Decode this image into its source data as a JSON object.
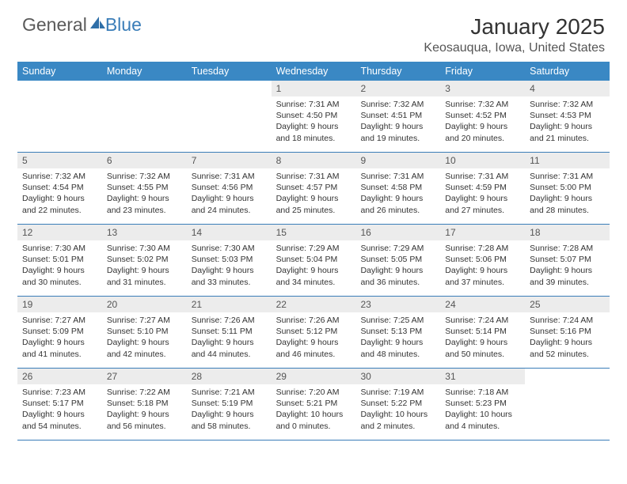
{
  "logo": {
    "text1": "General",
    "text2": "Blue"
  },
  "header": {
    "month": "January 2025",
    "location": "Keosauqua, Iowa, United States"
  },
  "colors": {
    "headerRowBg": "#3a88c4",
    "headerRowText": "#ffffff",
    "dayNumBg": "#ececec",
    "weekBorder": "#3a7db8",
    "logoGray": "#5a5a5a",
    "logoBlue": "#3a7db8"
  },
  "dow": [
    "Sunday",
    "Monday",
    "Tuesday",
    "Wednesday",
    "Thursday",
    "Friday",
    "Saturday"
  ],
  "weeks": [
    [
      {
        "empty": true
      },
      {
        "empty": true
      },
      {
        "empty": true
      },
      {
        "num": "1",
        "sunrise": "7:31 AM",
        "sunset": "4:50 PM",
        "dlh": "9",
        "dlm": "18"
      },
      {
        "num": "2",
        "sunrise": "7:32 AM",
        "sunset": "4:51 PM",
        "dlh": "9",
        "dlm": "19"
      },
      {
        "num": "3",
        "sunrise": "7:32 AM",
        "sunset": "4:52 PM",
        "dlh": "9",
        "dlm": "20"
      },
      {
        "num": "4",
        "sunrise": "7:32 AM",
        "sunset": "4:53 PM",
        "dlh": "9",
        "dlm": "21"
      }
    ],
    [
      {
        "num": "5",
        "sunrise": "7:32 AM",
        "sunset": "4:54 PM",
        "dlh": "9",
        "dlm": "22"
      },
      {
        "num": "6",
        "sunrise": "7:32 AM",
        "sunset": "4:55 PM",
        "dlh": "9",
        "dlm": "23"
      },
      {
        "num": "7",
        "sunrise": "7:31 AM",
        "sunset": "4:56 PM",
        "dlh": "9",
        "dlm": "24"
      },
      {
        "num": "8",
        "sunrise": "7:31 AM",
        "sunset": "4:57 PM",
        "dlh": "9",
        "dlm": "25"
      },
      {
        "num": "9",
        "sunrise": "7:31 AM",
        "sunset": "4:58 PM",
        "dlh": "9",
        "dlm": "26"
      },
      {
        "num": "10",
        "sunrise": "7:31 AM",
        "sunset": "4:59 PM",
        "dlh": "9",
        "dlm": "27"
      },
      {
        "num": "11",
        "sunrise": "7:31 AM",
        "sunset": "5:00 PM",
        "dlh": "9",
        "dlm": "28"
      }
    ],
    [
      {
        "num": "12",
        "sunrise": "7:30 AM",
        "sunset": "5:01 PM",
        "dlh": "9",
        "dlm": "30"
      },
      {
        "num": "13",
        "sunrise": "7:30 AM",
        "sunset": "5:02 PM",
        "dlh": "9",
        "dlm": "31"
      },
      {
        "num": "14",
        "sunrise": "7:30 AM",
        "sunset": "5:03 PM",
        "dlh": "9",
        "dlm": "33"
      },
      {
        "num": "15",
        "sunrise": "7:29 AM",
        "sunset": "5:04 PM",
        "dlh": "9",
        "dlm": "34"
      },
      {
        "num": "16",
        "sunrise": "7:29 AM",
        "sunset": "5:05 PM",
        "dlh": "9",
        "dlm": "36"
      },
      {
        "num": "17",
        "sunrise": "7:28 AM",
        "sunset": "5:06 PM",
        "dlh": "9",
        "dlm": "37"
      },
      {
        "num": "18",
        "sunrise": "7:28 AM",
        "sunset": "5:07 PM",
        "dlh": "9",
        "dlm": "39"
      }
    ],
    [
      {
        "num": "19",
        "sunrise": "7:27 AM",
        "sunset": "5:09 PM",
        "dlh": "9",
        "dlm": "41"
      },
      {
        "num": "20",
        "sunrise": "7:27 AM",
        "sunset": "5:10 PM",
        "dlh": "9",
        "dlm": "42"
      },
      {
        "num": "21",
        "sunrise": "7:26 AM",
        "sunset": "5:11 PM",
        "dlh": "9",
        "dlm": "44"
      },
      {
        "num": "22",
        "sunrise": "7:26 AM",
        "sunset": "5:12 PM",
        "dlh": "9",
        "dlm": "46"
      },
      {
        "num": "23",
        "sunrise": "7:25 AM",
        "sunset": "5:13 PM",
        "dlh": "9",
        "dlm": "48"
      },
      {
        "num": "24",
        "sunrise": "7:24 AM",
        "sunset": "5:14 PM",
        "dlh": "9",
        "dlm": "50"
      },
      {
        "num": "25",
        "sunrise": "7:24 AM",
        "sunset": "5:16 PM",
        "dlh": "9",
        "dlm": "52"
      }
    ],
    [
      {
        "num": "26",
        "sunrise": "7:23 AM",
        "sunset": "5:17 PM",
        "dlh": "9",
        "dlm": "54"
      },
      {
        "num": "27",
        "sunrise": "7:22 AM",
        "sunset": "5:18 PM",
        "dlh": "9",
        "dlm": "56"
      },
      {
        "num": "28",
        "sunrise": "7:21 AM",
        "sunset": "5:19 PM",
        "dlh": "9",
        "dlm": "58"
      },
      {
        "num": "29",
        "sunrise": "7:20 AM",
        "sunset": "5:21 PM",
        "dlh": "10",
        "dlm": "0"
      },
      {
        "num": "30",
        "sunrise": "7:19 AM",
        "sunset": "5:22 PM",
        "dlh": "10",
        "dlm": "2"
      },
      {
        "num": "31",
        "sunrise": "7:18 AM",
        "sunset": "5:23 PM",
        "dlh": "10",
        "dlm": "4"
      },
      {
        "empty": true
      }
    ]
  ]
}
